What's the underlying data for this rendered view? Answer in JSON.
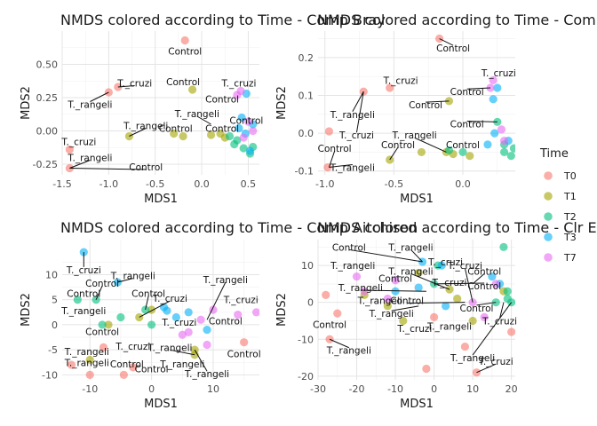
{
  "legend": {
    "title": "Time",
    "entries": [
      {
        "name": "T0",
        "color": "#F8766D"
      },
      {
        "name": "T1",
        "color": "#A3A500"
      },
      {
        "name": "T2",
        "color": "#00BF7D"
      },
      {
        "name": "T3",
        "color": "#00B0F6"
      },
      {
        "name": "T7",
        "color": "#E76BF3"
      }
    ]
  },
  "chart_data": [
    {
      "type": "scatter",
      "title": "NMDS colored according to Time - Comp Bray",
      "xlabel": "MDS1",
      "ylabel": "MDS2",
      "xlim": [
        -1.5,
        0.62
      ],
      "ylim": [
        -0.33,
        0.75
      ],
      "xticks": [
        -1.5,
        -1.0,
        -0.5,
        0.0,
        0.5
      ],
      "xtick_labels": [
        "-1.5",
        "-1.0",
        "-0.5",
        "0.0",
        "0.5"
      ],
      "yticks": [
        -0.25,
        0.0,
        0.25,
        0.5
      ],
      "yticks_labels": [
        "-0.25",
        "0.00",
        "0.25",
        "0.50"
      ],
      "grid": true,
      "series": [
        {
          "name": "T0",
          "x": [
            -0.18,
            -1.0,
            -0.9,
            -1.42,
            -1.42
          ],
          "y": [
            0.68,
            0.29,
            0.33,
            -0.14,
            -0.28
          ]
        },
        {
          "name": "T1",
          "x": [
            -0.1,
            -0.78,
            -0.3,
            -0.2,
            0.1,
            0.2,
            0.25
          ],
          "y": [
            0.31,
            -0.04,
            -0.02,
            -0.04,
            -0.03,
            -0.02,
            -0.05
          ]
        },
        {
          "name": "T2",
          "x": [
            0.38,
            0.45,
            0.52,
            0.55,
            0.3,
            0.35
          ],
          "y": [
            -0.07,
            -0.13,
            -0.17,
            -0.12,
            -0.04,
            -0.1
          ]
        },
        {
          "name": "T3",
          "x": [
            0.48,
            0.43,
            0.55,
            0.47,
            0.4,
            0.52
          ],
          "y": [
            0.28,
            0.1,
            0.05,
            -0.02,
            0.02,
            -0.15
          ]
        },
        {
          "name": "T7",
          "x": [
            0.38,
            0.42,
            0.5,
            0.55,
            0.45
          ],
          "y": [
            0.27,
            0.3,
            0.07,
            0.0,
            -0.05
          ]
        }
      ],
      "annotations": [
        {
          "text": "Control",
          "x": -0.18,
          "y": 0.68,
          "lx": -0.18,
          "ly": 0.6
        },
        {
          "text": "T._cruzi",
          "x": -0.9,
          "y": 0.33,
          "lx": -0.72,
          "ly": 0.36
        },
        {
          "text": "T._rangeli",
          "x": -1.0,
          "y": 0.29,
          "lx": -1.2,
          "ly": 0.2
        },
        {
          "text": "Control",
          "x": -0.1,
          "y": 0.31,
          "lx": -0.2,
          "ly": 0.37
        },
        {
          "text": "T._cruzi",
          "x": 0.4,
          "y": 0.3,
          "lx": 0.4,
          "ly": 0.36
        },
        {
          "text": "Control",
          "x": 0.38,
          "y": 0.27,
          "lx": 0.22,
          "ly": 0.24
        },
        {
          "text": "T._rangeli",
          "x": 0.1,
          "y": 0.05,
          "lx": -0.05,
          "ly": 0.13
        },
        {
          "text": "Control",
          "x": 0.48,
          "y": 0.1,
          "lx": 0.48,
          "ly": 0.08
        },
        {
          "text": "T._rangeli",
          "x": -0.78,
          "y": -0.04,
          "lx": -0.6,
          "ly": 0.04
        },
        {
          "text": "Control",
          "x": -0.2,
          "y": -0.04,
          "lx": -0.28,
          "ly": 0.02
        },
        {
          "text": "Control",
          "x": 0.25,
          "y": -0.05,
          "lx": 0.22,
          "ly": 0.02
        },
        {
          "text": "T._cruzi",
          "x": -1.42,
          "y": -0.14,
          "lx": -1.32,
          "ly": -0.08
        },
        {
          "text": "T._rangeli",
          "x": -1.42,
          "y": -0.28,
          "lx": -1.2,
          "ly": -0.2
        },
        {
          "text": "Control",
          "x": -1.42,
          "y": -0.28,
          "lx": -0.6,
          "ly": -0.27
        }
      ]
    },
    {
      "type": "scatter",
      "title": "NMDS colored according to Time - Comp Bray",
      "xlabel": "MDS1",
      "ylabel": "MDS2",
      "xlim": [
        -1.05,
        0.38
      ],
      "ylim": [
        -0.11,
        0.27
      ],
      "xticks": [
        -1.0,
        -0.5,
        0.0
      ],
      "xtick_labels": [
        "-1.0",
        "-0.5",
        "0.0"
      ],
      "yticks": [
        -0.1,
        0.0,
        0.1,
        0.2
      ],
      "yticks_labels": [
        "-0.1",
        "0.0",
        "0.1",
        "0.2"
      ],
      "grid": true,
      "series": [
        {
          "name": "T0",
          "x": [
            -0.17,
            -0.72,
            -0.53,
            -0.97,
            -0.98
          ],
          "y": [
            0.25,
            0.11,
            0.12,
            0.005,
            -0.09
          ]
        },
        {
          "name": "T1",
          "x": [
            -0.1,
            -0.12,
            -0.3,
            -0.53,
            -0.07,
            0.05
          ],
          "y": [
            0.085,
            -0.05,
            -0.05,
            -0.07,
            -0.055,
            -0.06
          ]
        },
        {
          "name": "T2",
          "x": [
            0.25,
            0.35,
            0.3,
            0.37,
            -0.1,
            0.0,
            0.3
          ],
          "y": [
            0.03,
            -0.06,
            -0.05,
            -0.04,
            -0.045,
            -0.05,
            -0.03
          ]
        },
        {
          "name": "T3",
          "x": [
            0.22,
            0.25,
            0.23,
            0.18,
            0.33
          ],
          "y": [
            0.09,
            0.12,
            0.0,
            -0.03,
            -0.02
          ]
        },
        {
          "name": "T7",
          "x": [
            0.2,
            0.22,
            0.28,
            0.3
          ],
          "y": [
            0.12,
            0.14,
            0.01,
            -0.02
          ]
        }
      ],
      "annotations": [
        {
          "text": "Control",
          "x": -0.17,
          "y": 0.25,
          "lx": -0.07,
          "ly": 0.225
        },
        {
          "text": "T._cruzi",
          "x": 0.22,
          "y": 0.14,
          "lx": 0.26,
          "ly": 0.16
        },
        {
          "text": "T._cruzi",
          "x": -0.53,
          "y": 0.12,
          "lx": -0.45,
          "ly": 0.14
        },
        {
          "text": "Control",
          "x": 0.2,
          "y": 0.12,
          "lx": 0.03,
          "ly": 0.11
        },
        {
          "text": "Control",
          "x": -0.1,
          "y": 0.085,
          "lx": -0.27,
          "ly": 0.075
        },
        {
          "text": "T._rangeli",
          "x": -0.72,
          "y": 0.11,
          "lx": -0.8,
          "ly": 0.05
        },
        {
          "text": "T._cruzi",
          "x": -0.72,
          "y": 0.11,
          "lx": -0.77,
          "ly": -0.005
        },
        {
          "text": "T._rangeli",
          "x": -0.12,
          "y": -0.05,
          "lx": -0.35,
          "ly": -0.005
        },
        {
          "text": "Control",
          "x": 0.25,
          "y": 0.03,
          "lx": 0.03,
          "ly": 0.025
        },
        {
          "text": "Control",
          "x": 0.0,
          "y": -0.05,
          "lx": 0.0,
          "ly": -0.03
        },
        {
          "text": "Control",
          "x": -0.97,
          "y": -0.09,
          "lx": -0.93,
          "ly": -0.04
        },
        {
          "text": "T._rangeli",
          "x": -0.97,
          "y": -0.09,
          "lx": -0.8,
          "ly": -0.09
        },
        {
          "text": "Control",
          "x": -0.53,
          "y": -0.07,
          "lx": -0.47,
          "ly": -0.03
        }
      ]
    },
    {
      "type": "scatter",
      "title": "NMDS colored according to Time - Comp Aitchison",
      "xlabel": "MDS1",
      "ylabel": "MDS2",
      "xlim": [
        -14.5,
        17.5
      ],
      "ylim": [
        -11,
        17
      ],
      "xticks": [
        -10,
        0,
        10
      ],
      "xtick_labels": [
        "-10",
        "0",
        "10"
      ],
      "yticks": [
        -10,
        -5,
        0,
        5,
        10
      ],
      "yticks_labels": [
        "-10",
        "-5",
        "0",
        "5",
        "10"
      ],
      "grid": true,
      "series": [
        {
          "name": "T0",
          "x": [
            -13,
            -10,
            -4.5,
            -3,
            15,
            -7.8
          ],
          "y": [
            -8,
            -10,
            -10,
            -8.5,
            -3.5,
            -4.5
          ]
        },
        {
          "name": "T1",
          "x": [
            -10,
            0,
            -7,
            7,
            -2,
            7
          ],
          "y": [
            -7,
            3,
            0,
            -6,
            1.5,
            -5
          ]
        },
        {
          "name": "T2",
          "x": [
            -12,
            -9,
            -1,
            0,
            -5,
            -8
          ],
          "y": [
            5,
            5,
            3,
            0,
            1.5,
            0
          ]
        },
        {
          "name": "T3",
          "x": [
            -11,
            -5.5,
            2,
            4,
            2.5,
            6,
            9
          ],
          "y": [
            14.5,
            8.5,
            3.5,
            1.5,
            2.8,
            2.5,
            -1
          ]
        },
        {
          "name": "T7",
          "x": [
            10,
            8,
            14,
            17,
            6,
            9,
            5
          ],
          "y": [
            3,
            1,
            2,
            2.5,
            -1.5,
            -4,
            -2
          ]
        }
      ],
      "annotations": [
        {
          "text": "T._cruzi",
          "x": -11,
          "y": 14.5,
          "lx": -11,
          "ly": 11
        },
        {
          "text": "T._rangeli",
          "x": -5.5,
          "y": 8.5,
          "lx": -3,
          "ly": 9.8
        },
        {
          "text": "Control",
          "x": -9,
          "y": 5,
          "lx": -8,
          "ly": 8.3
        },
        {
          "text": "T._rangeli",
          "x": 9,
          "y": 1,
          "lx": 12,
          "ly": 9
        },
        {
          "text": "Control",
          "x": -1,
          "y": 3,
          "lx": -0.5,
          "ly": 6.3
        },
        {
          "text": "Control",
          "x": -12,
          "y": 5,
          "lx": -11,
          "ly": 6.3
        },
        {
          "text": "T._cruzi",
          "x": -2,
          "y": 1.5,
          "lx": 3,
          "ly": 5.3
        },
        {
          "text": "T._cruzi",
          "x": 14,
          "y": 2,
          "lx": 14.5,
          "ly": 5
        },
        {
          "text": "T._rangeli",
          "x": -10,
          "y": 0,
          "lx": -11,
          "ly": 2.8
        },
        {
          "text": "Control",
          "x": -7,
          "y": 0,
          "lx": -8,
          "ly": -1.3
        },
        {
          "text": "T._cruzi",
          "x": 3,
          "y": 0,
          "lx": 4.5,
          "ly": 0.5
        },
        {
          "text": "Control",
          "x": 13,
          "y": 1,
          "lx": 12,
          "ly": 0.8
        },
        {
          "text": "Control",
          "x": 15,
          "y": -3.5,
          "lx": 15,
          "ly": -5.8
        },
        {
          "text": "T._cruzi",
          "x": -4,
          "y": -2,
          "lx": -3,
          "ly": -4.3
        },
        {
          "text": "T._rangeli",
          "x": -12,
          "y": -3,
          "lx": -10.5,
          "ly": -5.3
        },
        {
          "text": "T._rangeli",
          "x": 7,
          "y": -6,
          "lx": 3,
          "ly": -4.5
        },
        {
          "text": "T._rangeli",
          "x": -13,
          "y": -8,
          "lx": -10.5,
          "ly": -7.5
        },
        {
          "text": "Control",
          "x": -3,
          "y": -8.5,
          "lx": -4,
          "ly": -7.8
        },
        {
          "text": "T._rangeli",
          "x": 7,
          "y": -6,
          "lx": 5,
          "ly": -7.8
        },
        {
          "text": "Control",
          "x": -1,
          "y": -8,
          "lx": 0,
          "ly": -8.8
        },
        {
          "text": "T._rangeli",
          "x": 7,
          "y": -5,
          "lx": 9,
          "ly": -9.8
        }
      ]
    },
    {
      "type": "scatter",
      "title": "NMDS colored according to Time - Clr Euclidean",
      "xlabel": "MDS1",
      "ylabel": "MDS2",
      "xlim": [
        -30,
        21
      ],
      "ylim": [
        -21,
        17
      ],
      "xticks": [
        -30,
        -20,
        -10,
        0,
        10,
        20
      ],
      "xtick_labels": [
        "-30",
        "-20",
        "-10",
        "0",
        "10",
        "20"
      ],
      "yticks": [
        -20,
        -10,
        0,
        10
      ],
      "yticks_labels": [
        "-20",
        "-10",
        "0",
        "10"
      ],
      "grid": true,
      "series": [
        {
          "name": "T0",
          "x": [
            -28,
            -25,
            -27,
            -2,
            0,
            8,
            11,
            20
          ],
          "y": [
            2,
            -3,
            -10,
            -18,
            -4,
            -12,
            -19,
            -8
          ]
        },
        {
          "name": "T1",
          "x": [
            -18,
            -12,
            -8,
            -4,
            4,
            6,
            10,
            18
          ],
          "y": [
            2,
            -1,
            -5,
            8,
            3.5,
            1,
            -5,
            3
          ]
        },
        {
          "name": "T2",
          "x": [
            0,
            1,
            18,
            19,
            20,
            16,
            19
          ],
          "y": [
            5,
            10,
            15,
            3,
            0,
            0,
            1
          ]
        },
        {
          "name": "T3",
          "x": [
            -10,
            -4,
            -3,
            2,
            15,
            17,
            3
          ],
          "y": [
            3,
            4,
            11,
            10,
            7,
            5,
            -1
          ]
        },
        {
          "name": "T7",
          "x": [
            -20,
            -18,
            -10,
            -12,
            10,
            13,
            16
          ],
          "y": [
            7,
            3,
            6,
            1,
            0,
            -4,
            5
          ]
        }
      ],
      "annotations": [
        {
          "text": "Control",
          "x": -3,
          "y": 11,
          "lx": -22,
          "ly": 15
        },
        {
          "text": "T._rangeli",
          "x": -3,
          "y": 11,
          "lx": -6,
          "ly": 15
        },
        {
          "text": "T._cruzi",
          "x": 0,
          "y": 10,
          "lx": 3,
          "ly": 11
        },
        {
          "text": "T._rangeli",
          "x": -20,
          "y": 7,
          "lx": -21,
          "ly": 10
        },
        {
          "text": "Control",
          "x": -10,
          "y": 3,
          "lx": -10,
          "ly": 6.5
        },
        {
          "text": "T._rangeli",
          "x": -12,
          "y": 1,
          "lx": -14,
          "ly": 0.5
        },
        {
          "text": "T._cruzi",
          "x": 10,
          "y": 0,
          "lx": 8,
          "ly": 10
        },
        {
          "text": "T._rangeli",
          "x": 4,
          "y": 3.5,
          "lx": -6,
          "ly": 8.5
        },
        {
          "text": "Control",
          "x": 10,
          "y": 5,
          "lx": 13,
          "ly": 8.5
        },
        {
          "text": "T._cruzi",
          "x": 3,
          "y": 5,
          "lx": 4,
          "ly": 5.5
        },
        {
          "text": "Control",
          "x": 0,
          "y": 5,
          "lx": 13,
          "ly": 4.5
        },
        {
          "text": "T._rangeli",
          "x": -2,
          "y": 3,
          "lx": -19,
          "ly": 4
        },
        {
          "text": "Control",
          "x": 8,
          "y": 0,
          "lx": -7,
          "ly": 0.5
        },
        {
          "text": "T._rangeli",
          "x": -4,
          "y": -1,
          "lx": -11,
          "ly": -3
        },
        {
          "text": "Control",
          "x": 16,
          "y": 0,
          "lx": 11,
          "ly": -1.5
        },
        {
          "text": "Control",
          "x": -25,
          "y": -3,
          "lx": -27,
          "ly": -6
        },
        {
          "text": "T._cruzi",
          "x": -8,
          "y": -5,
          "lx": -5,
          "ly": -7
        },
        {
          "text": "T._rangeli",
          "x": 2,
          "y": -5,
          "lx": 4,
          "ly": -6.5
        },
        {
          "text": "T._cruzi",
          "x": 18,
          "y": 0,
          "lx": 17,
          "ly": -5
        },
        {
          "text": "T._rangeli",
          "x": -27,
          "y": -10,
          "lx": -22,
          "ly": -13
        },
        {
          "text": "T._rangeli",
          "x": 20,
          "y": 0,
          "lx": 10,
          "ly": -15
        },
        {
          "text": "T._cruzi",
          "x": 11,
          "y": -19,
          "lx": 16,
          "ly": -16
        }
      ]
    }
  ]
}
